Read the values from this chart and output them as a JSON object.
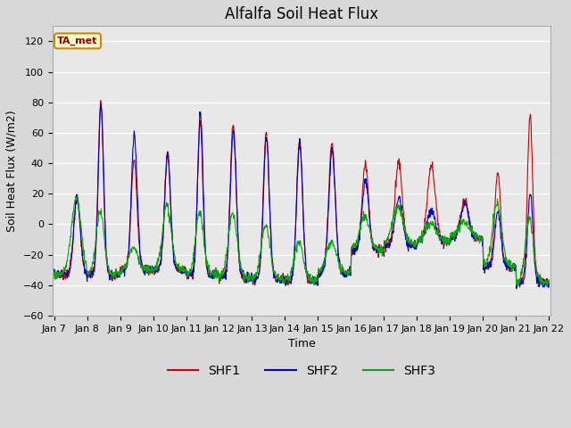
{
  "title": "Alfalfa Soil Heat Flux",
  "xlabel": "Time",
  "ylabel": "Soil Heat Flux (W/m2)",
  "ylim": [
    -60,
    130
  ],
  "yticks": [
    -60,
    -40,
    -20,
    0,
    20,
    40,
    60,
    80,
    100,
    120
  ],
  "xlim_days": [
    7,
    22
  ],
  "xtick_labels": [
    "Jan 7",
    "Jan 8",
    "Jan 9",
    "Jan 10",
    "Jan 11",
    "Jan 12",
    "Jan 13",
    "Jan 14",
    "Jan 15",
    "Jan 16",
    "Jan 17",
    "Jan 18",
    "Jan 19",
    "Jan 20",
    "Jan 21",
    "Jan 22"
  ],
  "legend_label": "TA_met",
  "series_labels": [
    "SHF1",
    "SHF2",
    "SHF3"
  ],
  "series_colors": [
    "#cc0000",
    "#0000cc",
    "#00aa00"
  ],
  "background_color": "#d8d8d8",
  "axes_bg_color": "#e8e8e8",
  "title_fontsize": 12,
  "label_fontsize": 9,
  "tick_fontsize": 8
}
